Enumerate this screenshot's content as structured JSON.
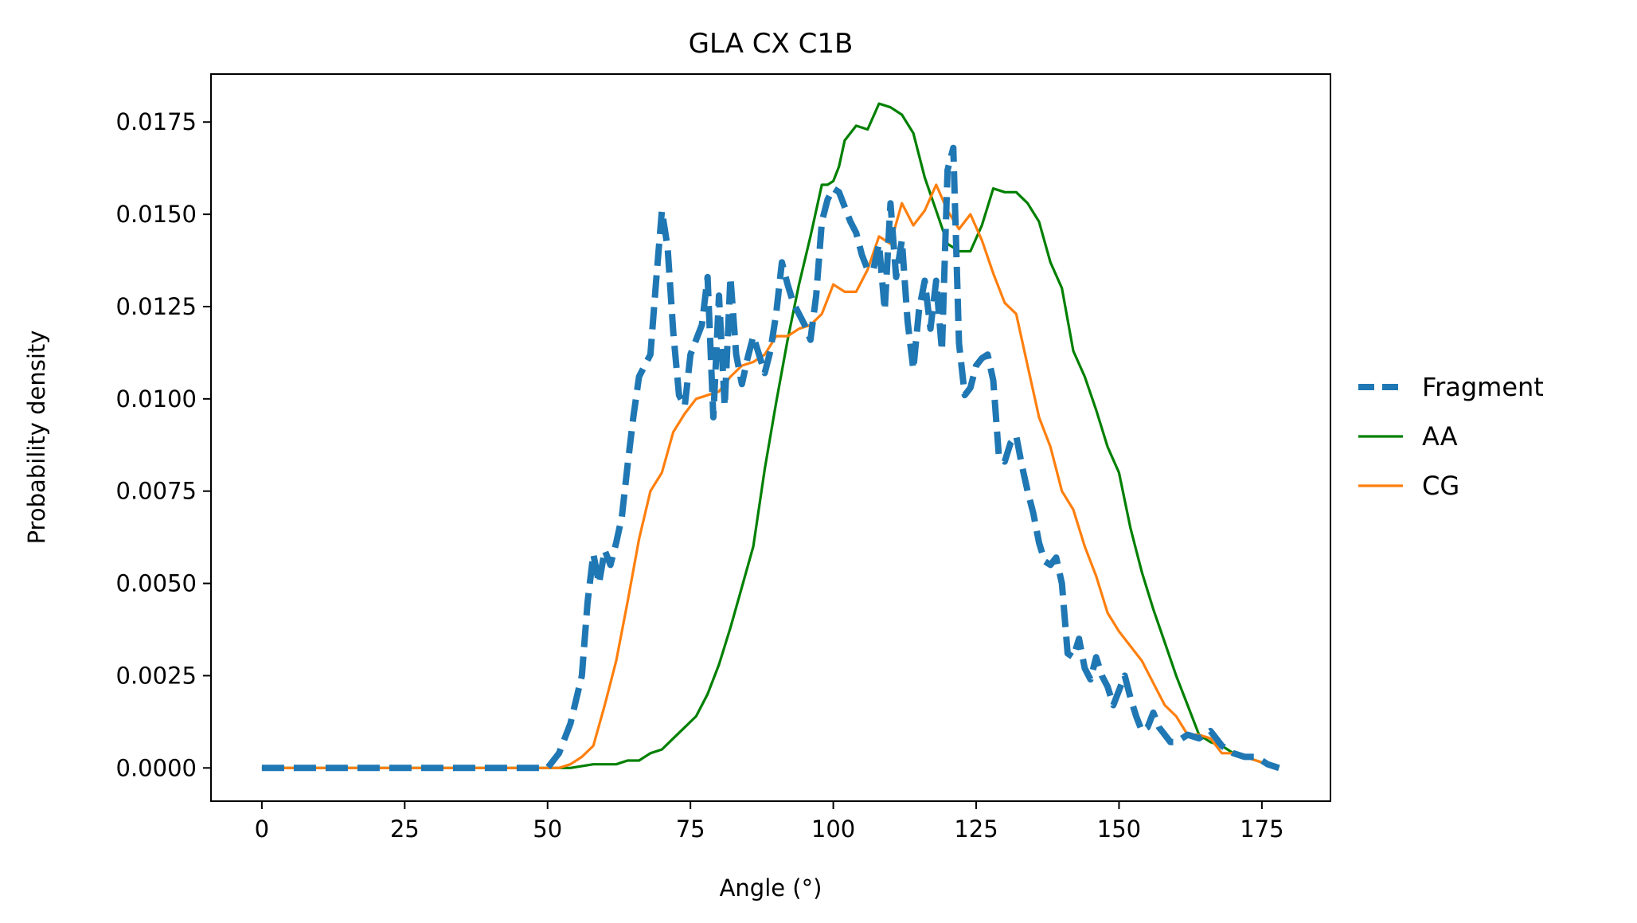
{
  "chart_data": {
    "type": "line",
    "title": "GLA CX C1B",
    "xlabel": "Angle (°)",
    "ylabel": "Probability density",
    "xlim": [
      -8.9,
      187
    ],
    "ylim": [
      -0.0009,
      0.0188
    ],
    "xticks": [
      0,
      25,
      50,
      75,
      100,
      125,
      150,
      175
    ],
    "xtick_labels": [
      "0",
      "25",
      "50",
      "75",
      "100",
      "125",
      "150",
      "175"
    ],
    "yticks": [
      0.0,
      0.0025,
      0.005,
      0.0075,
      0.01,
      0.0125,
      0.015,
      0.0175
    ],
    "ytick_labels": [
      "0.0000",
      "0.0025",
      "0.0050",
      "0.0075",
      "0.0100",
      "0.0125",
      "0.0150",
      "0.0175"
    ],
    "grid": false,
    "legend_position": "outside-right",
    "series": [
      {
        "name": "Fragment",
        "color": "#1f77b4",
        "style": "dashed",
        "x": [
          0,
          10,
          20,
          30,
          40,
          48,
          50,
          52,
          54,
          56,
          57,
          58,
          59,
          60,
          61,
          62,
          63,
          64,
          65,
          66,
          67,
          68,
          69,
          70,
          71,
          72,
          73,
          74,
          75,
          76,
          77,
          78,
          79,
          80,
          81,
          82,
          83,
          84,
          85,
          86,
          87,
          88,
          89,
          90,
          91,
          92,
          93,
          94,
          95,
          96,
          97,
          98,
          99,
          100,
          101,
          102,
          103,
          104,
          105,
          106,
          107,
          108,
          109,
          110,
          111,
          112,
          113,
          114,
          115,
          116,
          117,
          118,
          119,
          120,
          121,
          122,
          123,
          124,
          125,
          126,
          127,
          128,
          129,
          130,
          131,
          132,
          133,
          134,
          135,
          136,
          137,
          138,
          139,
          140,
          141,
          142,
          143,
          144,
          145,
          146,
          147,
          148,
          149,
          150,
          151,
          152,
          153,
          154,
          155,
          156,
          157,
          158,
          159,
          160,
          162,
          164,
          166,
          168,
          170,
          172,
          174,
          176,
          178
        ],
        "y": [
          0.0,
          0.0,
          0.0,
          0.0,
          0.0,
          0.0,
          0.0,
          0.0004,
          0.0012,
          0.0025,
          0.0045,
          0.0058,
          0.005,
          0.0059,
          0.0055,
          0.0061,
          0.0068,
          0.0082,
          0.0095,
          0.0106,
          0.0109,
          0.0112,
          0.0132,
          0.0151,
          0.0141,
          0.0118,
          0.0101,
          0.0098,
          0.0112,
          0.0116,
          0.012,
          0.0133,
          0.0095,
          0.0128,
          0.0098,
          0.0133,
          0.0112,
          0.0104,
          0.0111,
          0.0117,
          0.0112,
          0.0107,
          0.0113,
          0.0123,
          0.0137,
          0.0131,
          0.0126,
          0.0123,
          0.012,
          0.0116,
          0.0128,
          0.0148,
          0.0154,
          0.0157,
          0.0156,
          0.0152,
          0.0148,
          0.0145,
          0.0139,
          0.0135,
          0.0135,
          0.0142,
          0.0124,
          0.0153,
          0.0133,
          0.0143,
          0.0121,
          0.0108,
          0.0124,
          0.0132,
          0.0119,
          0.0132,
          0.0113,
          0.0162,
          0.0168,
          0.0115,
          0.0101,
          0.0103,
          0.0109,
          0.0111,
          0.0112,
          0.0105,
          0.0084,
          0.0083,
          0.0088,
          0.009,
          0.0082,
          0.0075,
          0.0069,
          0.0061,
          0.0056,
          0.0055,
          0.0057,
          0.005,
          0.0031,
          0.003,
          0.0035,
          0.0027,
          0.0024,
          0.003,
          0.0025,
          0.0022,
          0.0017,
          0.0021,
          0.0025,
          0.0019,
          0.0014,
          0.001,
          0.0011,
          0.0015,
          0.0011,
          0.0009,
          0.0007,
          0.0007,
          0.0009,
          0.0008,
          0.001,
          0.0006,
          0.0004,
          0.0003,
          0.0003,
          0.0001,
          0.0
        ]
      },
      {
        "name": "AA",
        "color": "#008000",
        "style": "solid",
        "x": [
          0,
          10,
          20,
          30,
          40,
          50,
          54,
          58,
          60,
          62,
          64,
          66,
          68,
          70,
          72,
          74,
          76,
          78,
          80,
          82,
          84,
          86,
          88,
          90,
          92,
          94,
          96,
          98,
          99,
          100,
          101,
          102,
          104,
          106,
          108,
          110,
          112,
          114,
          116,
          118,
          120,
          122,
          124,
          126,
          128,
          130,
          132,
          134,
          136,
          138,
          140,
          142,
          144,
          146,
          148,
          150,
          152,
          154,
          156,
          158,
          160,
          162,
          164,
          166,
          168,
          170,
          172,
          174,
          176,
          178
        ],
        "y": [
          0.0,
          0.0,
          0.0,
          0.0,
          0.0,
          0.0,
          0.0,
          0.0001,
          0.0001,
          0.0001,
          0.0002,
          0.0002,
          0.0004,
          0.0005,
          0.0008,
          0.0011,
          0.0014,
          0.002,
          0.0028,
          0.0038,
          0.0049,
          0.006,
          0.0081,
          0.0099,
          0.0116,
          0.0131,
          0.0144,
          0.0158,
          0.0158,
          0.0159,
          0.0163,
          0.017,
          0.0174,
          0.0173,
          0.018,
          0.0179,
          0.0177,
          0.0172,
          0.016,
          0.0151,
          0.0142,
          0.014,
          0.014,
          0.0147,
          0.0157,
          0.0156,
          0.0156,
          0.0153,
          0.0148,
          0.0137,
          0.013,
          0.0113,
          0.0106,
          0.0097,
          0.0087,
          0.008,
          0.0065,
          0.0053,
          0.0043,
          0.0034,
          0.0025,
          0.0017,
          0.0009,
          0.0007,
          0.0006,
          0.0004,
          0.0003,
          0.0002,
          0.0001,
          0.0
        ]
      },
      {
        "name": "CG",
        "color": "#ff7f0e",
        "style": "solid",
        "x": [
          0,
          10,
          20,
          30,
          40,
          50,
          52,
          54,
          56,
          58,
          60,
          62,
          64,
          66,
          68,
          70,
          72,
          74,
          76,
          78,
          80,
          82,
          84,
          86,
          88,
          90,
          92,
          94,
          96,
          98,
          100,
          102,
          104,
          106,
          108,
          110,
          112,
          114,
          116,
          118,
          120,
          122,
          124,
          126,
          128,
          130,
          132,
          134,
          136,
          138,
          140,
          142,
          144,
          146,
          148,
          150,
          152,
          154,
          156,
          158,
          160,
          162,
          164,
          166,
          168,
          170,
          172,
          174,
          176,
          178
        ],
        "y": [
          0.0,
          0.0,
          0.0,
          0.0,
          0.0,
          0.0,
          0.0,
          0.0001,
          0.0003,
          0.0006,
          0.0017,
          0.0029,
          0.0045,
          0.0062,
          0.0075,
          0.008,
          0.0091,
          0.0096,
          0.01,
          0.0101,
          0.0102,
          0.0106,
          0.0109,
          0.011,
          0.0112,
          0.0117,
          0.0117,
          0.0119,
          0.012,
          0.0123,
          0.0131,
          0.0129,
          0.0129,
          0.0135,
          0.0144,
          0.0142,
          0.0153,
          0.0147,
          0.0151,
          0.0158,
          0.0151,
          0.0146,
          0.015,
          0.0143,
          0.0134,
          0.0126,
          0.0123,
          0.0109,
          0.0095,
          0.0087,
          0.0075,
          0.007,
          0.006,
          0.0052,
          0.0042,
          0.0037,
          0.0033,
          0.0029,
          0.0023,
          0.0017,
          0.0014,
          0.0009,
          0.0009,
          0.0008,
          0.0004,
          0.0004,
          0.0003,
          0.0002,
          0.0001,
          0.0
        ]
      }
    ]
  }
}
